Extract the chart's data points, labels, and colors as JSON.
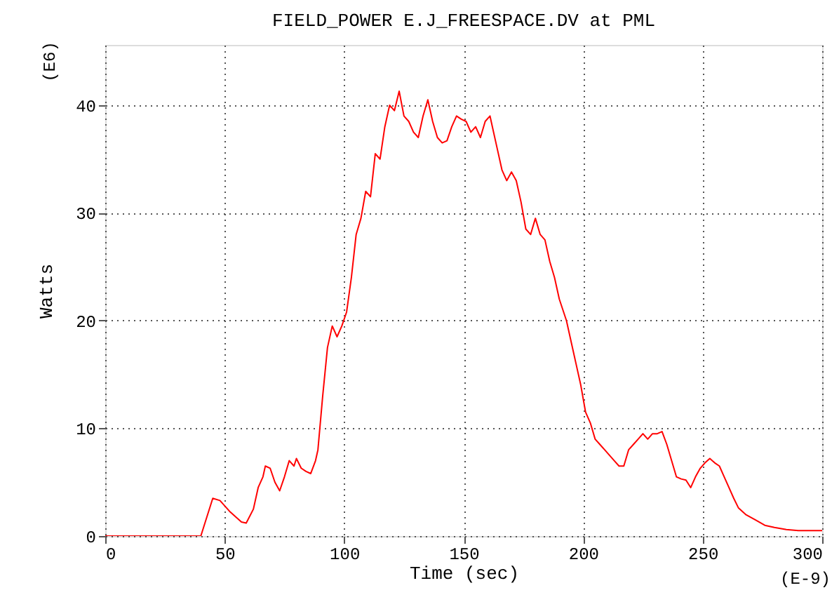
{
  "chart_data": {
    "type": "line",
    "title": "FIELD_POWER E.J_FREESPACE.DV at PML",
    "xlabel": "Time  (sec)",
    "ylabel": "Watts",
    "annotations": [
      "(E6)",
      "(E-9)"
    ],
    "x": [
      0,
      40,
      45,
      48,
      52,
      57,
      59,
      62,
      64,
      66,
      67,
      69,
      71,
      73,
      75,
      77,
      79,
      80,
      82,
      84,
      86,
      88,
      89,
      91,
      93,
      95,
      97,
      99,
      101,
      103,
      105,
      107,
      109,
      111,
      113,
      115,
      117,
      119,
      121,
      123,
      125,
      127,
      129,
      131,
      133,
      135,
      137,
      139,
      141,
      143,
      145,
      147,
      149,
      151,
      153,
      155,
      157,
      159,
      161,
      162,
      164,
      166,
      168,
      170,
      172,
      174,
      176,
      178,
      180,
      182,
      184,
      186,
      188,
      190,
      193,
      195,
      197,
      199,
      201,
      203,
      205,
      207,
      209,
      211,
      213,
      215,
      217,
      219,
      221,
      223,
      225,
      227,
      229,
      231,
      233,
      235,
      237,
      239,
      241,
      243,
      245,
      247,
      249,
      251,
      253,
      255,
      257,
      259,
      261,
      263,
      265,
      268,
      272,
      276,
      280,
      285,
      290,
      300
    ],
    "series": [
      {
        "color": "#ff0000",
        "values": [
          0,
          0,
          3.5,
          3.3,
          2.3,
          1.3,
          1.2,
          2.5,
          4.5,
          5.5,
          6.5,
          6.3,
          5.0,
          4.2,
          5.5,
          7.0,
          6.5,
          7.2,
          6.3,
          6.0,
          5.8,
          7.0,
          8.0,
          13,
          17.5,
          19.5,
          18.5,
          19.5,
          20.8,
          24,
          28,
          29.5,
          32,
          31.5,
          35.5,
          35,
          38,
          40,
          39.5,
          41.3,
          39,
          38.5,
          37.5,
          37,
          39,
          40.5,
          38.5,
          37,
          36.5,
          36.7,
          38,
          39,
          38.7,
          38.5,
          37.5,
          38,
          37,
          38.5,
          39,
          38,
          36,
          34,
          33,
          33.8,
          33,
          31,
          28.5,
          28,
          29.5,
          28,
          27.5,
          25.5,
          24,
          22,
          20,
          18,
          16,
          14,
          11.5,
          10.5,
          9,
          8.5,
          8,
          7.5,
          7,
          6.5,
          6.5,
          8,
          8.5,
          9,
          9.5,
          9,
          9.5,
          9.5,
          9.7,
          8.5,
          7,
          5.5,
          5.3,
          5.2,
          4.5,
          5.5,
          6.3,
          6.8,
          7.2,
          6.8,
          6.5,
          5.5,
          4.5,
          3.5,
          2.6,
          2.0,
          1.5,
          1.0,
          0.8,
          0.6,
          0.5,
          0.5
        ]
      }
    ],
    "xlim": [
      0,
      300
    ],
    "xticks": [
      0,
      50,
      100,
      150,
      200,
      250,
      300
    ],
    "ylim": [
      0,
      45.6
    ],
    "yticks": [
      0,
      10,
      20,
      30,
      40
    ],
    "grid": true,
    "legend": false,
    "marker": "none",
    "line_style": "solid"
  }
}
